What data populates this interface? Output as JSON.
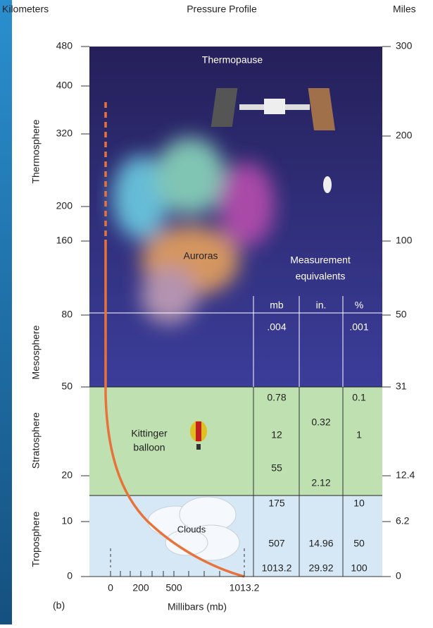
{
  "header": {
    "left_unit": "Kilometers",
    "title": "Pressure Profile",
    "right_unit": "Miles"
  },
  "left_axis": {
    "ticks": [
      "480",
      "400",
      "320",
      "200",
      "160",
      "80",
      "50",
      "20",
      "10",
      "0"
    ]
  },
  "right_axis": {
    "ticks": [
      "300",
      "200",
      "100",
      "50",
      "31",
      "12.4",
      "6.2",
      "0"
    ]
  },
  "layers": [
    "Thermosphere",
    "Mesosphere",
    "Stratosphere",
    "Troposphere"
  ],
  "labels": {
    "thermopause": "Thermopause",
    "auroras": "Auroras",
    "measurement": [
      "Measurement",
      "equivalents"
    ],
    "balloon": [
      "Kittinger",
      "balloon"
    ],
    "clouds": "Clouds"
  },
  "table": {
    "columns": [
      "mb",
      "in.",
      "%"
    ],
    "mb": [
      ".004",
      "0.78",
      "12",
      "55",
      "175",
      "507",
      "1013.2"
    ],
    "in": [
      "0.32",
      "2.12",
      "14.96",
      "29.92"
    ],
    "pct": [
      ".001",
      "0.1",
      "1",
      "10",
      "50",
      "100"
    ]
  },
  "bottom_axis": {
    "ticks": [
      "0",
      "200",
      "500",
      "1013.2"
    ],
    "label": "Millibars (mb)"
  },
  "panel": "(b)"
}
